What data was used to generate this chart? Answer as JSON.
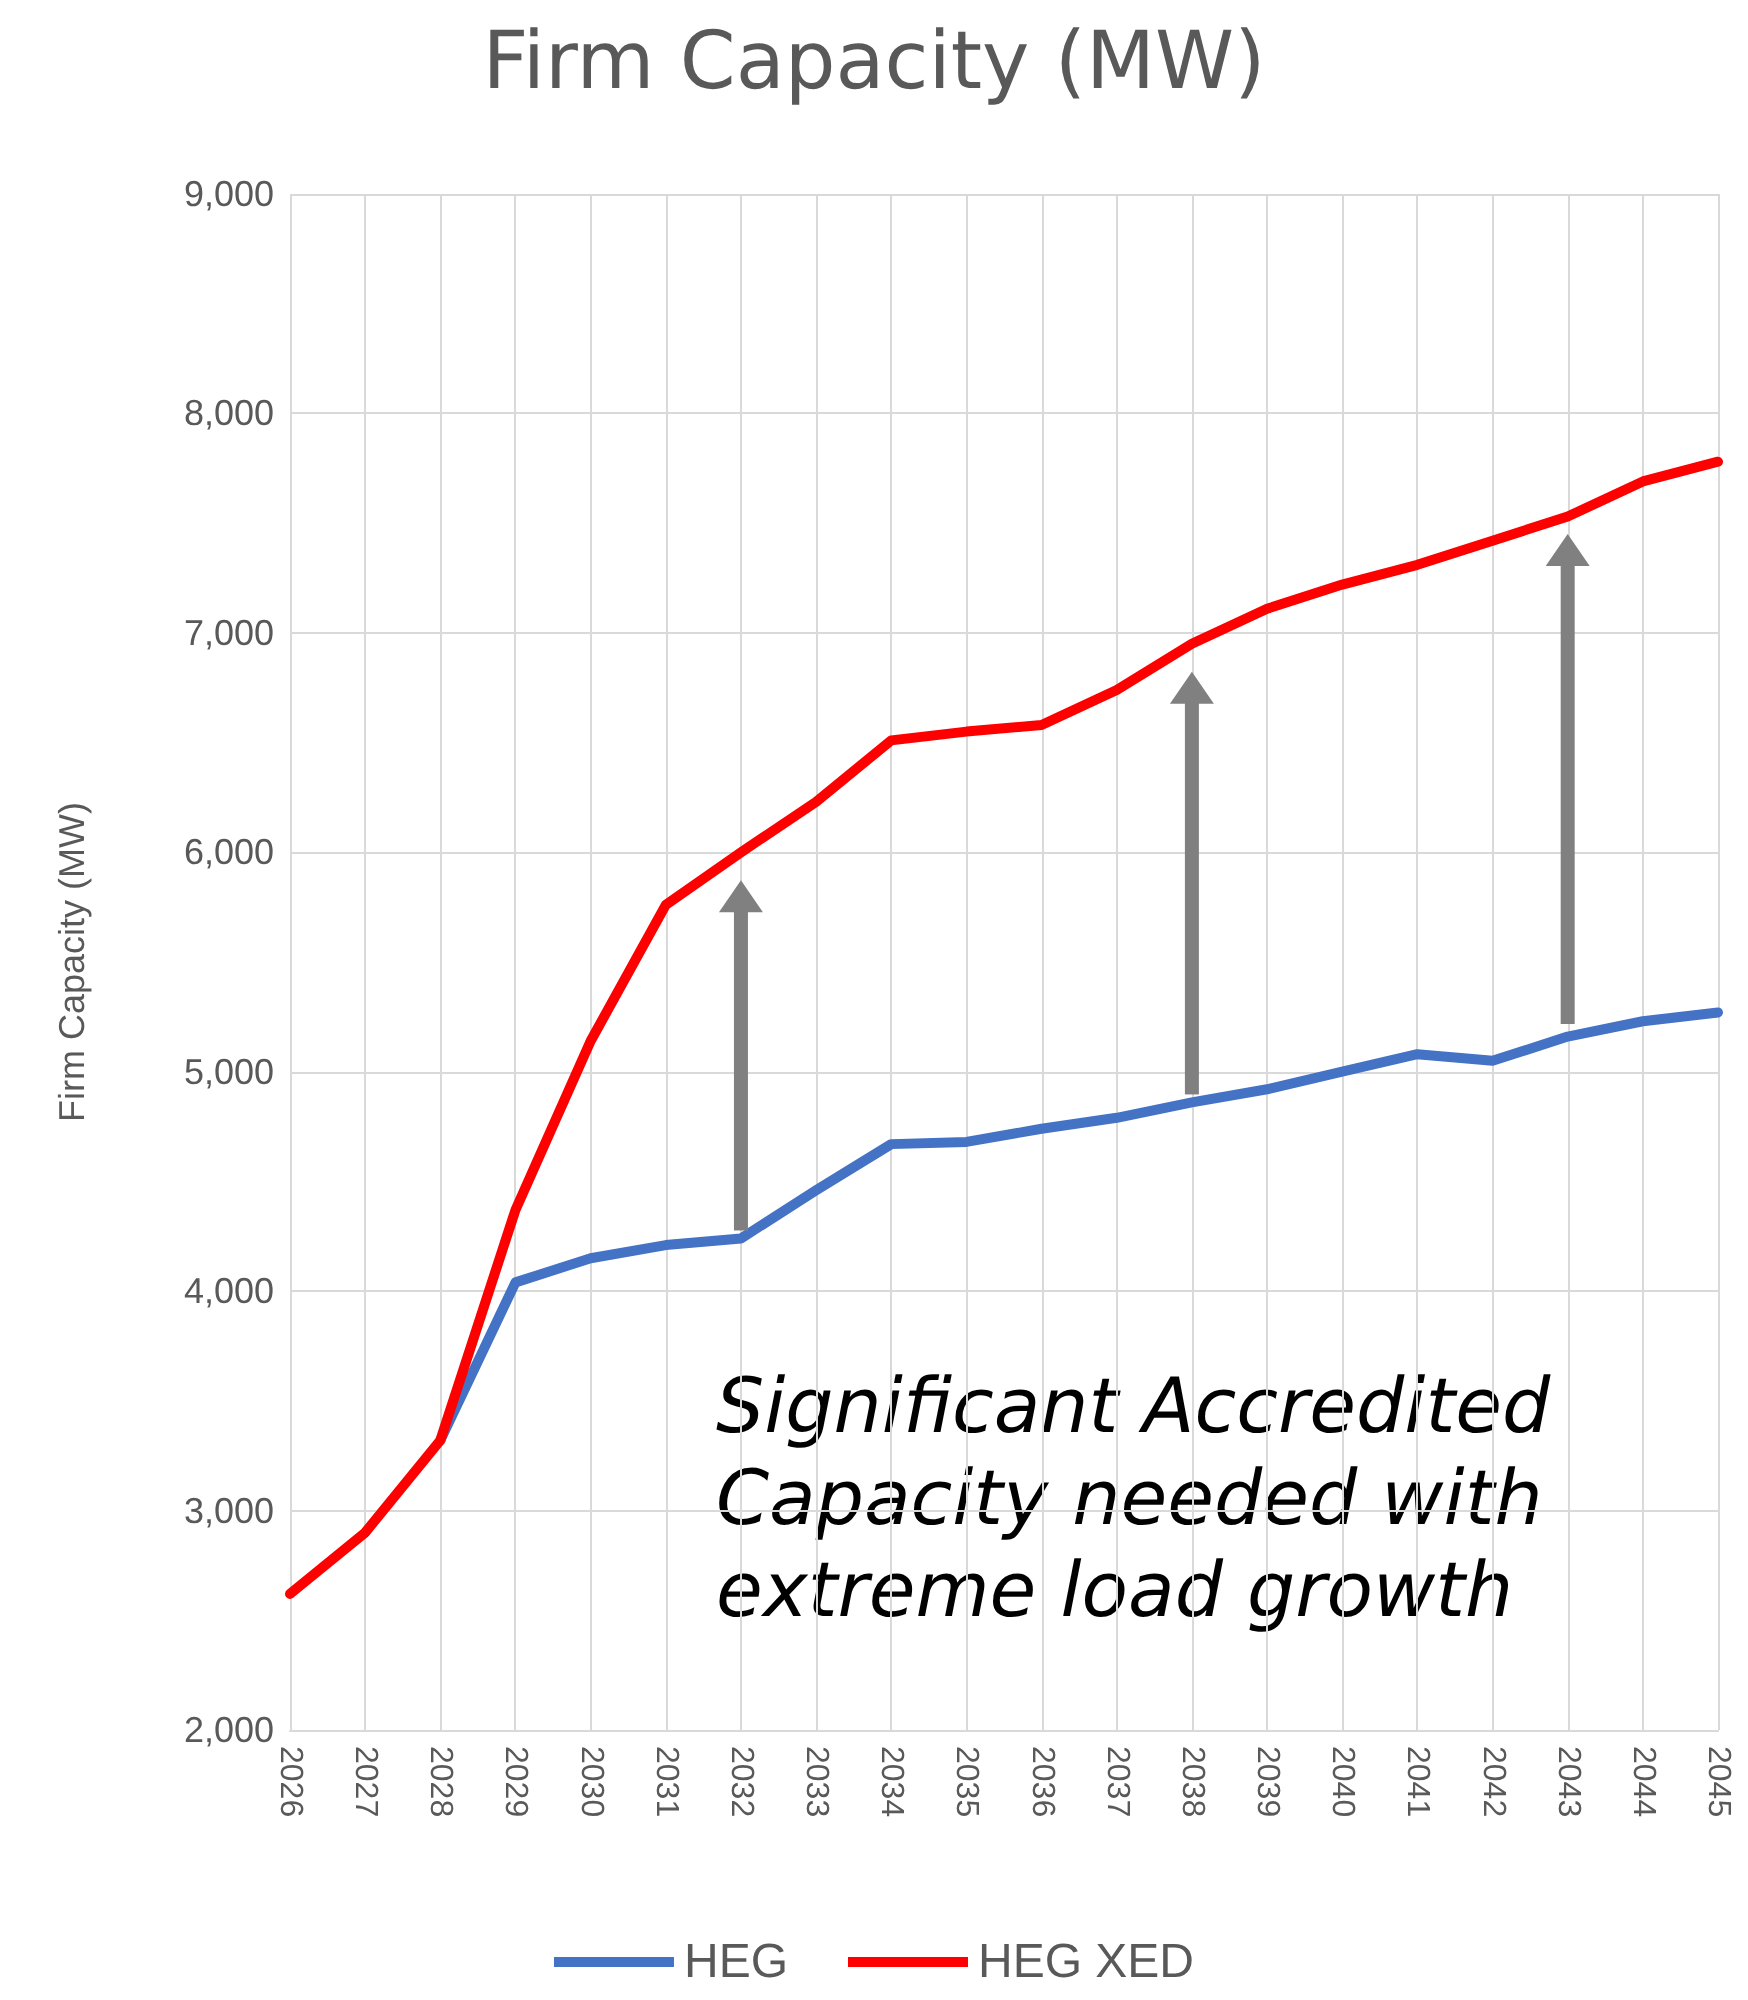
{
  "chart_data": {
    "type": "line",
    "title": "Firm Capacity (MW)",
    "ylabel": "Firm Capacity (MW)",
    "categories": [
      "2026",
      "2027",
      "2028",
      "2029",
      "2030",
      "2031",
      "2032",
      "2033",
      "2034",
      "2035",
      "2036",
      "2037",
      "2038",
      "2039",
      "2040",
      "2041",
      "2042",
      "2043",
      "2044",
      "2045"
    ],
    "series": [
      {
        "name": "HEG",
        "color": "#4472c4",
        "values": [
          null,
          null,
          3320,
          4040,
          4150,
          4210,
          4240,
          4460,
          4670,
          4680,
          4740,
          4790,
          4860,
          4920,
          5000,
          5080,
          5050,
          5160,
          5230,
          5270
        ]
      },
      {
        "name": "HEG XED",
        "color": "#ff0000",
        "values": [
          2620,
          2900,
          3320,
          4370,
          5140,
          5760,
          6000,
          6230,
          6510,
          6550,
          6580,
          6740,
          6950,
          7110,
          7220,
          7310,
          7420,
          7530,
          7690,
          7780
        ]
      }
    ],
    "ylim": [
      2000,
      9000
    ],
    "yticks": [
      {
        "value": 2000,
        "label": "2,000"
      },
      {
        "value": 3000,
        "label": "3,000"
      },
      {
        "value": 4000,
        "label": "4,000"
      },
      {
        "value": 5000,
        "label": "5,000"
      },
      {
        "value": 6000,
        "label": "6,000"
      },
      {
        "value": 7000,
        "label": "7,000"
      },
      {
        "value": 8000,
        "label": "8,000"
      },
      {
        "value": 9000,
        "label": "9,000"
      }
    ],
    "grid": true,
    "legend": "bottom",
    "marker": "none",
    "line_style": "solid",
    "annotations": [
      "Significant Accredited Capacity needed with extreme load growth"
    ]
  }
}
